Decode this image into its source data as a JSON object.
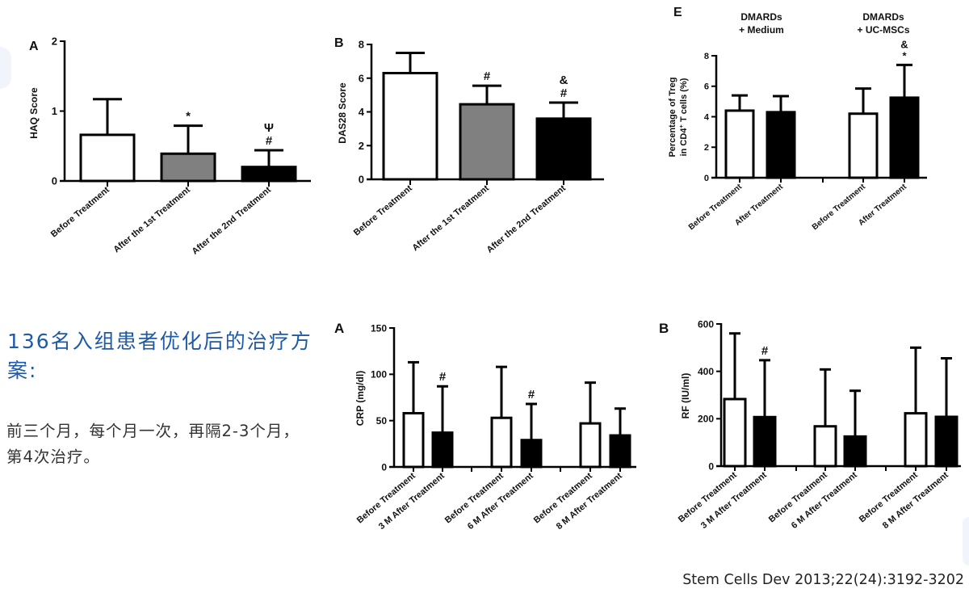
{
  "text": {
    "headline": "136名入组患者优化后的治疗方案:",
    "body": "前三个月，每个月一次，再隔2-3个月，第4次治疗。",
    "citation": "Stem Cells Dev 2013;22(24):3192-3202"
  },
  "colors": {
    "headline": "#1f5aa6",
    "white_bar": "#ffffff",
    "gray_bar": "#808080",
    "black_bar": "#000000"
  },
  "chart_data": [
    {
      "id": "haq",
      "type": "bar",
      "panel_label": "A",
      "title": "",
      "xlabel": "",
      "ylabel": "HAQ Score",
      "ylim": [
        0,
        2
      ],
      "yticks": [
        0,
        1,
        2
      ],
      "ytick_labels": [
        "0",
        "1",
        "2"
      ],
      "grid": false,
      "categories": [
        "Before Treatment",
        "After the 1st Treatment",
        "After the 2nd Treatment"
      ],
      "values": [
        0.66,
        0.39,
        0.2
      ],
      "error_upper": [
        1.17,
        0.79,
        0.44
      ],
      "fills": [
        "white",
        "gray",
        "black"
      ],
      "annotations": [
        [],
        [
          "*"
        ],
        [
          "#",
          "Ψ"
        ]
      ]
    },
    {
      "id": "das28",
      "type": "bar",
      "panel_label": "B",
      "title": "",
      "xlabel": "",
      "ylabel": "DAS28 Score",
      "ylim": [
        0,
        8
      ],
      "yticks": [
        0,
        2,
        4,
        6,
        8
      ],
      "ytick_labels": [
        "0",
        "2",
        "4",
        "6",
        "8"
      ],
      "grid": false,
      "categories": [
        "Before Treatment",
        "After the 1st Treatment",
        "After the 2nd Treatment"
      ],
      "values": [
        6.3,
        4.45,
        3.6
      ],
      "error_upper": [
        7.5,
        5.55,
        4.55
      ],
      "fills": [
        "white",
        "gray",
        "black"
      ],
      "annotations": [
        [],
        [
          "#"
        ],
        [
          "#",
          "&"
        ]
      ]
    },
    {
      "id": "treg",
      "type": "bar",
      "panel_label": "E",
      "title": "",
      "xlabel": "",
      "ylabel_lines": [
        "Percentage of Treg",
        "in CD4",
        "+",
        " T cells (%)"
      ],
      "ylim": [
        0,
        8
      ],
      "yticks": [
        0,
        2,
        4,
        6,
        8
      ],
      "ytick_labels": [
        "0",
        "2",
        "4",
        "6",
        "8"
      ],
      "grid": false,
      "group_labels": [
        [
          "DMARDs",
          "+ Medium"
        ],
        [
          "DMARDs",
          "+ UC-MSCs"
        ]
      ],
      "categories": [
        "Before Treatment",
        "After Treatment",
        "Before Treatment",
        "After Treatment"
      ],
      "values": [
        4.4,
        4.3,
        4.2,
        5.25
      ],
      "error_upper": [
        5.4,
        5.35,
        5.85,
        7.4
      ],
      "fills": [
        "white",
        "black",
        "white",
        "black"
      ],
      "annotations": [
        [],
        [],
        [],
        [
          "*",
          "&"
        ]
      ]
    },
    {
      "id": "crp",
      "type": "bar",
      "panel_label": "A",
      "title": "",
      "xlabel": "",
      "ylabel": "CRP (mg/dl)",
      "ylim": [
        0,
        150
      ],
      "yticks": [
        0,
        50,
        100,
        150
      ],
      "ytick_labels": [
        "0",
        "50",
        "100",
        "150"
      ],
      "grid": false,
      "categories": [
        "Before Treatment",
        "3 M After Treatment",
        "Before Treatment",
        "6 M After Treatment",
        "Before Treatment",
        "8 M After Treatment"
      ],
      "values": [
        58,
        37,
        53,
        29,
        47,
        34
      ],
      "error_upper": [
        113,
        87,
        108,
        68,
        91,
        63
      ],
      "fills": [
        "white",
        "black",
        "white",
        "black",
        "white",
        "black"
      ],
      "annotations": [
        [],
        [
          "#"
        ],
        [],
        [
          "#"
        ],
        [],
        []
      ]
    },
    {
      "id": "rf",
      "type": "bar",
      "panel_label": "B",
      "title": "",
      "xlabel": "",
      "ylabel": "RF (IU/ml)",
      "ylim": [
        0,
        600
      ],
      "yticks": [
        0,
        200,
        400,
        600
      ],
      "ytick_labels": [
        "0",
        "200",
        "400",
        "600"
      ],
      "grid": false,
      "categories": [
        "Before Treatment",
        "3 M After Treatment",
        "Before Treatment",
        "6 M After Treatment",
        "Before Treatment",
        "8 M After Treatment"
      ],
      "values": [
        283,
        207,
        168,
        125,
        223,
        208
      ],
      "error_upper": [
        560,
        447,
        408,
        318,
        500,
        455
      ],
      "fills": [
        "white",
        "black",
        "white",
        "black",
        "white",
        "black"
      ],
      "annotations": [
        [],
        [
          "#"
        ],
        [],
        [],
        [],
        []
      ]
    }
  ]
}
